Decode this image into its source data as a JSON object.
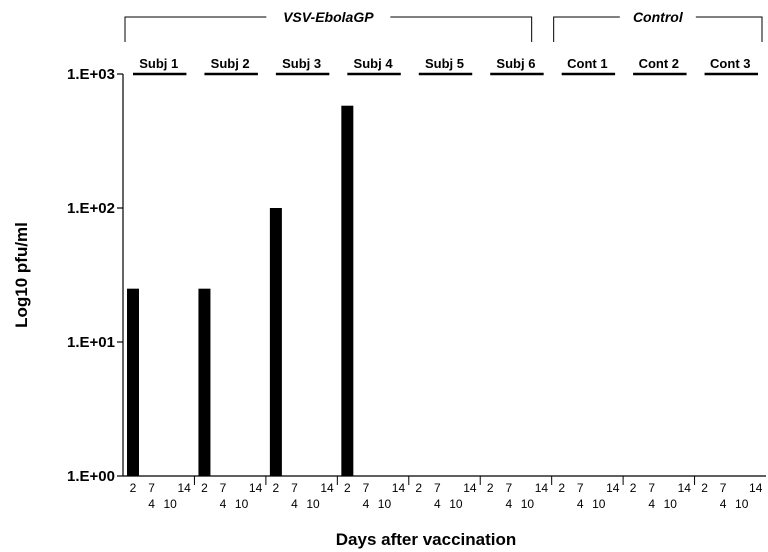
{
  "chart_data": {
    "type": "bar",
    "xlabel": "Days after vaccination",
    "ylabel": "Log10 pfu/ml",
    "y_scale": "log",
    "ylim": [
      1,
      1000
    ],
    "y_ticks": [
      1,
      10,
      100,
      1000
    ],
    "y_tick_labels": [
      "1.E+00",
      "1.E+01",
      "1.E+02",
      "1.E+03"
    ],
    "days": [
      "2",
      "4",
      "7",
      "10",
      "14"
    ],
    "groups": [
      {
        "label": "VSV-EbolaGP",
        "subjects": [
          "Subj 1",
          "Subj 2",
          "Subj 3",
          "Subj 4",
          "Subj 5",
          "Subj 6"
        ]
      },
      {
        "label": "Control",
        "subjects": [
          "Cont 1",
          "Cont 2",
          "Cont 3"
        ]
      }
    ],
    "series": [
      {
        "subject": "Subj 1",
        "values": [
          25,
          null,
          null,
          null,
          null
        ]
      },
      {
        "subject": "Subj 2",
        "values": [
          25,
          null,
          null,
          null,
          null
        ]
      },
      {
        "subject": "Subj 3",
        "values": [
          100,
          null,
          null,
          null,
          null
        ]
      },
      {
        "subject": "Subj 4",
        "values": [
          580,
          null,
          null,
          null,
          null
        ]
      },
      {
        "subject": "Subj 5",
        "values": [
          null,
          null,
          null,
          null,
          null
        ]
      },
      {
        "subject": "Subj 6",
        "values": [
          null,
          null,
          null,
          null,
          null
        ]
      },
      {
        "subject": "Cont 1",
        "values": [
          null,
          null,
          null,
          null,
          null
        ]
      },
      {
        "subject": "Cont 2",
        "values": [
          null,
          null,
          null,
          null,
          null
        ]
      },
      {
        "subject": "Cont 3",
        "values": [
          null,
          null,
          null,
          null,
          null
        ]
      }
    ],
    "grid": false,
    "bar_color": "#000000"
  }
}
